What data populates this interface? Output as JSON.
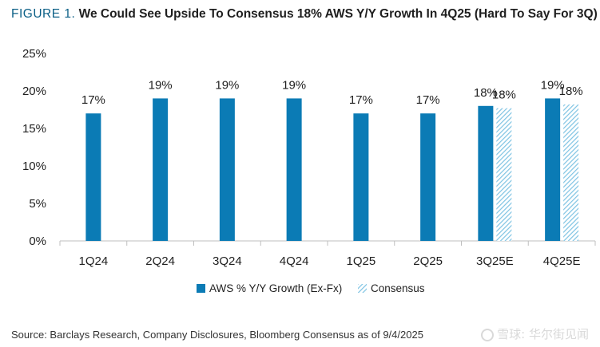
{
  "header": {
    "figure_label": "FIGURE 1.",
    "title": "We Could See Upside To Consensus 18% AWS Y/Y Growth In 4Q25 (Hard To Say For 3Q)"
  },
  "source": "Source: Barclays Research, Company Disclosures, Bloomberg Consensus as of 9/4/2025",
  "watermark": "雪球: 华尔街见闻",
  "colors": {
    "aws": "#0b7bb5",
    "consensus": "#7ec3e3",
    "axis": "#bfbfbf",
    "text": "#1f1f1f"
  },
  "chart_data": {
    "type": "bar",
    "categories": [
      "1Q24",
      "2Q24",
      "3Q24",
      "4Q24",
      "1Q25",
      "2Q25",
      "3Q25E",
      "4Q25E"
    ],
    "series": [
      {
        "name": "AWS % Y/Y Growth (Ex-Fx)",
        "values": [
          17,
          19,
          19,
          19,
          17,
          17,
          18,
          19
        ],
        "labels": [
          "17%",
          "19%",
          "19%",
          "19%",
          "17%",
          "17%",
          "18%",
          "19%"
        ],
        "pattern": "solid"
      },
      {
        "name": "Consensus",
        "values": [
          null,
          null,
          null,
          null,
          null,
          null,
          17.7,
          18.2
        ],
        "labels": [
          null,
          null,
          null,
          null,
          null,
          null,
          "18%",
          "18%"
        ],
        "pattern": "hatched"
      }
    ],
    "ylim": [
      0,
      25
    ],
    "yticks": [
      0,
      5,
      10,
      15,
      20,
      25
    ],
    "ytick_labels": [
      "0%",
      "5%",
      "10%",
      "15%",
      "20%",
      "25%"
    ],
    "grid": false,
    "legend": "bottom"
  }
}
